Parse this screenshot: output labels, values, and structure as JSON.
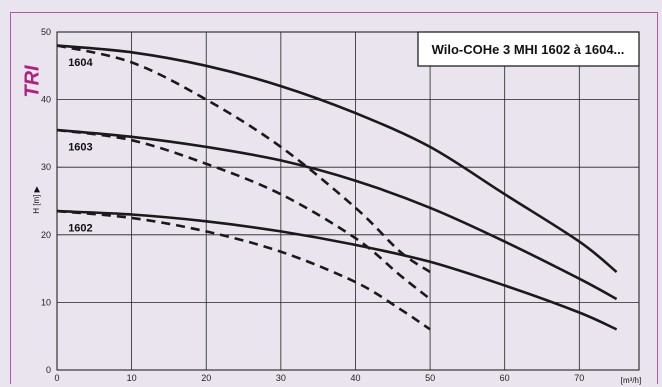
{
  "side_tag": "TRI",
  "chart_data": {
    "type": "line",
    "title": "Wilo-COHe 3 MHI 1602 à 1604...",
    "xlabel": "[m³/h]",
    "ylabel": "H [m] ▶",
    "xlim": [
      0,
      78
    ],
    "ylim": [
      0,
      50
    ],
    "xticks": [
      0,
      10,
      20,
      30,
      40,
      50,
      60,
      70
    ],
    "yticks": [
      0,
      10,
      20,
      30,
      40,
      50
    ],
    "grid": true,
    "series": [
      {
        "name": "1604",
        "style": "solid",
        "x": [
          0,
          10,
          20,
          30,
          40,
          50,
          60,
          70,
          75
        ],
        "y": [
          48,
          47,
          45,
          42,
          38,
          33,
          26,
          19,
          14.5
        ]
      },
      {
        "name": "1604",
        "style": "dashed",
        "x": [
          0,
          10,
          20,
          30,
          40,
          46,
          50
        ],
        "y": [
          48,
          45.5,
          40,
          33,
          24,
          17.5,
          14.5
        ]
      },
      {
        "name": "1603",
        "style": "solid",
        "x": [
          0,
          10,
          20,
          30,
          40,
          50,
          60,
          70,
          75
        ],
        "y": [
          35.5,
          34.5,
          33,
          31,
          28,
          24,
          19,
          13.5,
          10.5
        ]
      },
      {
        "name": "1603",
        "style": "dashed",
        "x": [
          0,
          10,
          20,
          30,
          40,
          46,
          50
        ],
        "y": [
          35.5,
          34,
          30.5,
          26,
          19.5,
          14,
          10.5
        ]
      },
      {
        "name": "1602",
        "style": "solid",
        "x": [
          0,
          10,
          20,
          30,
          40,
          50,
          60,
          70,
          75
        ],
        "y": [
          23.5,
          23,
          22,
          20.5,
          18.5,
          16,
          12.5,
          8.5,
          6
        ]
      },
      {
        "name": "1602",
        "style": "dashed",
        "x": [
          0,
          10,
          20,
          30,
          40,
          46,
          50
        ],
        "y": [
          23.5,
          22.5,
          20.5,
          17.5,
          13,
          9,
          6
        ]
      }
    ],
    "labels": [
      {
        "text": "1604",
        "x": 1.5,
        "y": 45
      },
      {
        "text": "1603",
        "x": 1.5,
        "y": 32.5
      },
      {
        "text": "1602",
        "x": 1.5,
        "y": 20.5
      }
    ]
  }
}
